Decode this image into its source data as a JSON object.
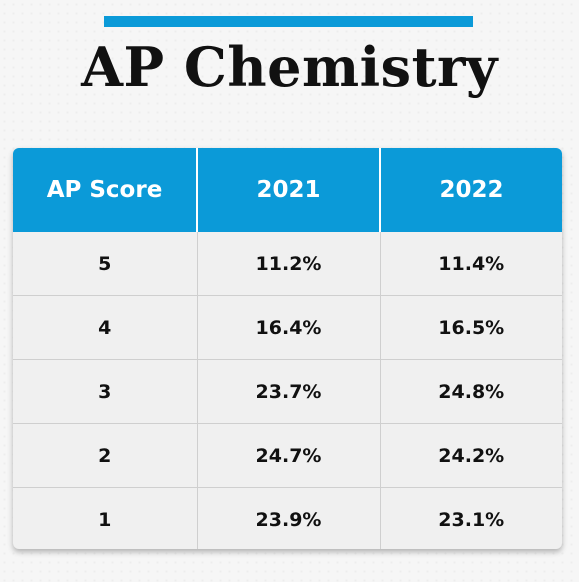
{
  "title": "AP Chemistry",
  "colors": {
    "accent": "#0b9ad8",
    "header_text": "#ffffff",
    "body_text": "#111111",
    "table_background": "#f0f0f0"
  },
  "chart_data": {
    "type": "table",
    "title": "AP Chemistry",
    "columns": [
      "AP Score",
      "2021",
      "2022"
    ],
    "rows": [
      [
        "5",
        "11.2%",
        "11.4%"
      ],
      [
        "4",
        "16.4%",
        "16.5%"
      ],
      [
        "3",
        "23.7%",
        "24.8%"
      ],
      [
        "2",
        "24.7%",
        "24.2%"
      ],
      [
        "1",
        "23.9%",
        "23.1%"
      ]
    ]
  }
}
